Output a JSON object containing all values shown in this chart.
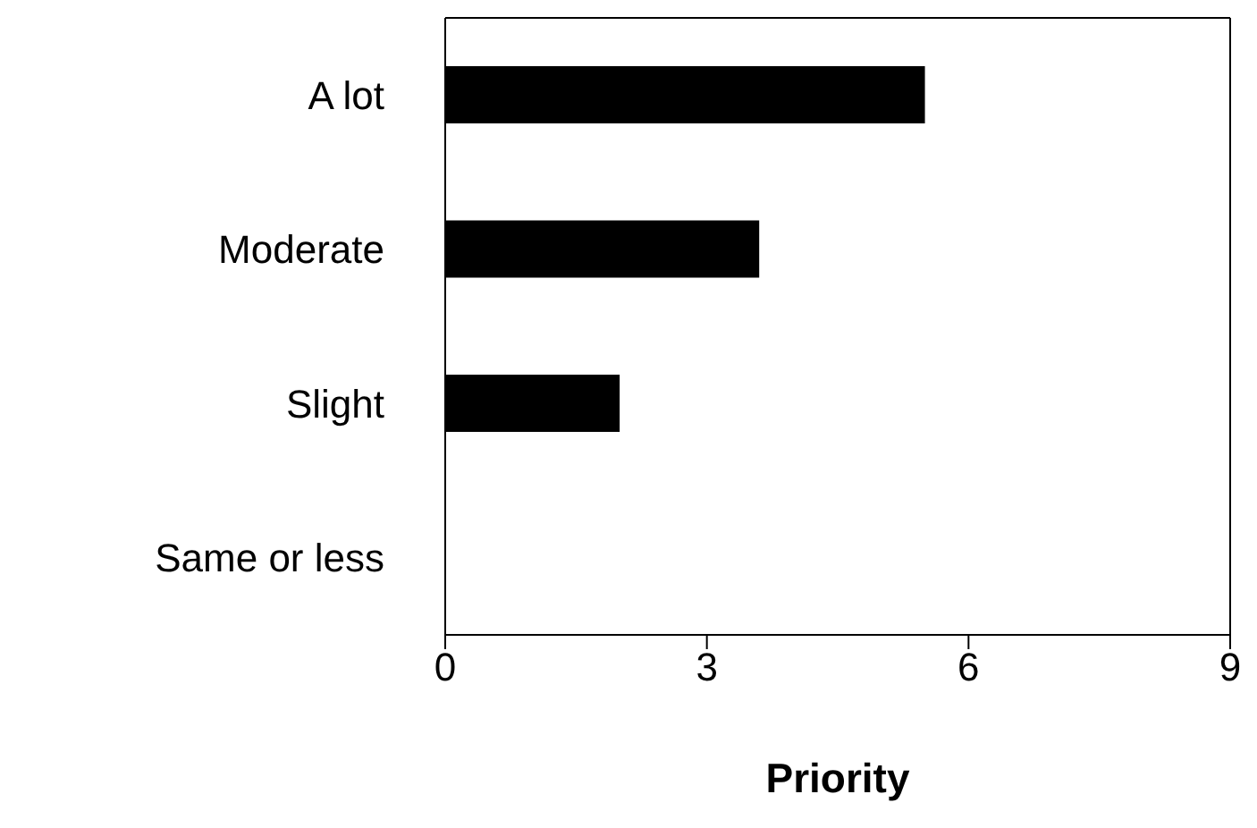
{
  "chart_data": {
    "type": "bar",
    "orientation": "horizontal",
    "xlabel": "Priority",
    "categories": [
      "A lot",
      "Moderate",
      "Slight",
      "Same or less"
    ],
    "values": [
      5.5,
      3.6,
      2.0,
      0
    ],
    "color": "#000000",
    "xlim": [
      0,
      9
    ],
    "xticks": [
      0,
      3,
      6,
      9
    ],
    "grid": false,
    "legend": false
  }
}
